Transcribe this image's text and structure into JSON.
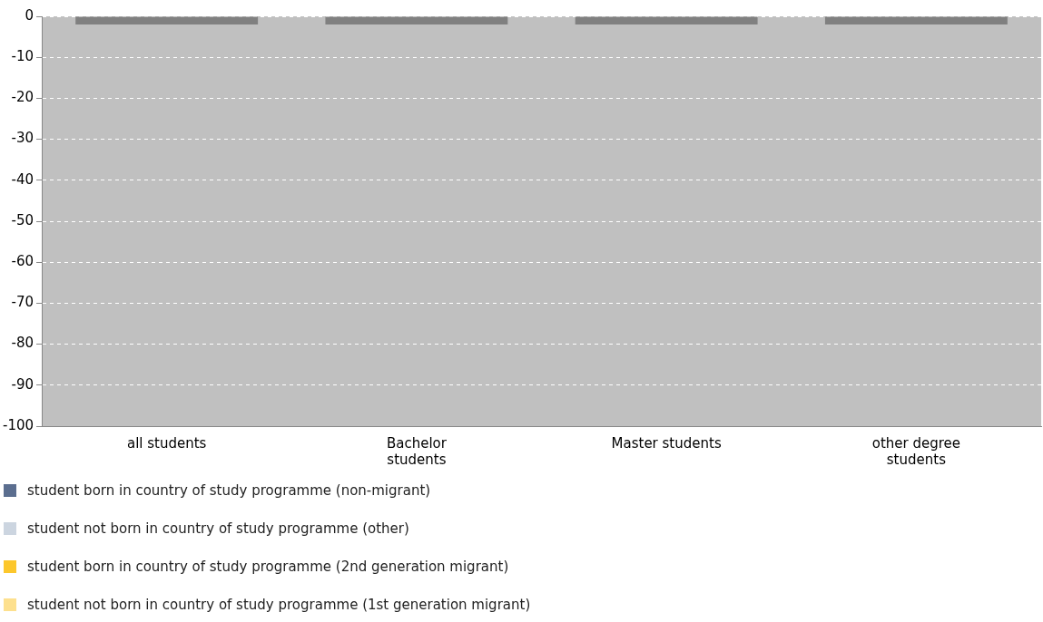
{
  "chart_data": {
    "type": "bar",
    "categories": [
      "all students",
      "Bachelor students",
      "Master students",
      "other degree students"
    ],
    "series": [
      {
        "name": "student born in country of study programme (non-migrant)",
        "color": "#5b6e8f",
        "values": [
          null,
          null,
          null,
          null
        ]
      },
      {
        "name": "student not born in country of study programme (other)",
        "color": "#ccd5e0",
        "values": [
          null,
          null,
          null,
          null
        ]
      },
      {
        "name": "student born in country of study programme (2nd generation migrant)",
        "color": "#fcc72c",
        "values": [
          null,
          null,
          null,
          null
        ]
      },
      {
        "name": "student not born in country of study programme (1st generation migrant)",
        "color": "#fde08e",
        "values": [
          null,
          null,
          null,
          null
        ]
      },
      {
        "color": "#808080",
        "values": [
          -2,
          -2,
          -2,
          -2
        ]
      }
    ],
    "ylim": [
      -100,
      0
    ],
    "yticks": [
      0,
      -10,
      -20,
      -30,
      -40,
      -50,
      -60,
      -70,
      -80,
      -90,
      -100
    ],
    "grid": "y",
    "legend": "bottom"
  }
}
